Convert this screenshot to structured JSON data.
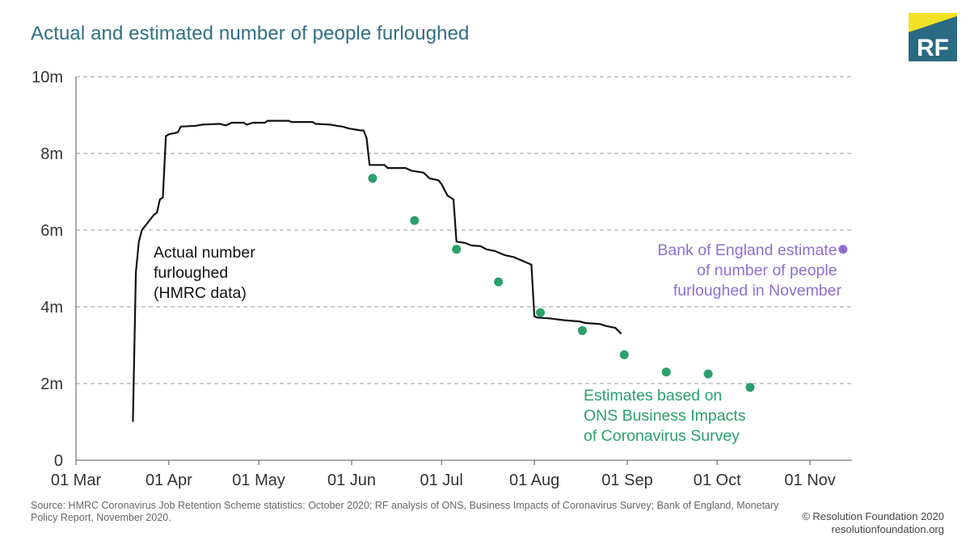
{
  "title": "Actual and estimated number of people furloughed",
  "logo": {
    "text": "RF",
    "colors": {
      "top": "#f0e126",
      "body": "#2a6a82",
      "text": "#ffffff"
    }
  },
  "source": "Source: HMRC Coronavirus Job Retention Scheme statistics: October 2020; RF analysis of ONS, Business Impacts of Coronavirus Survey; Bank of England, Monetary Policy Report, November 2020.",
  "copyright": {
    "line1": "© Resolution Foundation 2020",
    "line2": "resolutionfoundation.org"
  },
  "chart_data": {
    "type": "line",
    "title": "Actual and estimated number of people furloughed",
    "xlabel": "",
    "ylabel": "",
    "x_ticks": [
      "01 Mar",
      "01 Apr",
      "01 May",
      "01 Jun",
      "01 Jul",
      "01 Aug",
      "01 Sep",
      "01 Oct",
      "01 Nov"
    ],
    "x_range": [
      "2020-03-01",
      "2020-11-15"
    ],
    "y_ticks": [
      "0",
      "2m",
      "4m",
      "6m",
      "8m",
      "10m"
    ],
    "ylim": [
      0,
      10
    ],
    "grid": "horizontal dashed",
    "legend": "none (direct annotations)",
    "series": [
      {
        "name": "Actual number furloughed (HMRC data)",
        "style": "line",
        "color": "#111111",
        "points": [
          [
            "2020-03-20",
            1.0
          ],
          [
            "2020-03-21",
            4.9
          ],
          [
            "2020-03-22",
            5.7
          ],
          [
            "2020-03-23",
            6.0
          ],
          [
            "2020-03-25",
            6.2
          ],
          [
            "2020-03-27",
            6.4
          ],
          [
            "2020-03-28",
            6.45
          ],
          [
            "2020-03-29",
            6.8
          ],
          [
            "2020-03-30",
            6.85
          ],
          [
            "2020-03-31",
            8.45
          ],
          [
            "2020-04-01",
            8.5
          ],
          [
            "2020-04-04",
            8.55
          ],
          [
            "2020-04-05",
            8.7
          ],
          [
            "2020-04-10",
            8.72
          ],
          [
            "2020-04-12",
            8.75
          ],
          [
            "2020-04-18",
            8.77
          ],
          [
            "2020-04-20",
            8.73
          ],
          [
            "2020-04-22",
            8.8
          ],
          [
            "2020-04-26",
            8.8
          ],
          [
            "2020-04-27",
            8.75
          ],
          [
            "2020-04-29",
            8.8
          ],
          [
            "2020-05-03",
            8.8
          ],
          [
            "2020-05-04",
            8.85
          ],
          [
            "2020-05-11",
            8.85
          ],
          [
            "2020-05-12",
            8.82
          ],
          [
            "2020-05-19",
            8.82
          ],
          [
            "2020-05-20",
            8.77
          ],
          [
            "2020-05-25",
            8.75
          ],
          [
            "2020-05-27",
            8.72
          ],
          [
            "2020-05-29",
            8.7
          ],
          [
            "2020-05-31",
            8.65
          ],
          [
            "2020-06-04",
            8.6
          ],
          [
            "2020-06-05",
            8.6
          ],
          [
            "2020-06-06",
            8.4
          ],
          [
            "2020-06-07",
            7.7
          ],
          [
            "2020-06-12",
            7.7
          ],
          [
            "2020-06-13",
            7.62
          ],
          [
            "2020-06-19",
            7.62
          ],
          [
            "2020-06-21",
            7.55
          ],
          [
            "2020-06-25",
            7.5
          ],
          [
            "2020-06-27",
            7.35
          ],
          [
            "2020-06-30",
            7.3
          ],
          [
            "2020-07-01",
            7.2
          ],
          [
            "2020-07-03",
            6.9
          ],
          [
            "2020-07-05",
            6.8
          ],
          [
            "2020-07-06",
            5.7
          ],
          [
            "2020-07-09",
            5.66
          ],
          [
            "2020-07-11",
            5.6
          ],
          [
            "2020-07-14",
            5.58
          ],
          [
            "2020-07-16",
            5.5
          ],
          [
            "2020-07-19",
            5.45
          ],
          [
            "2020-07-22",
            5.35
          ],
          [
            "2020-07-25",
            5.3
          ],
          [
            "2020-07-28",
            5.2
          ],
          [
            "2020-07-31",
            5.1
          ],
          [
            "2020-08-01",
            3.75
          ],
          [
            "2020-08-02",
            3.72
          ],
          [
            "2020-08-06",
            3.7
          ],
          [
            "2020-08-11",
            3.65
          ],
          [
            "2020-08-16",
            3.62
          ],
          [
            "2020-08-18",
            3.58
          ],
          [
            "2020-08-23",
            3.55
          ],
          [
            "2020-08-25",
            3.5
          ],
          [
            "2020-08-28",
            3.45
          ],
          [
            "2020-08-30",
            3.3
          ]
        ]
      },
      {
        "name": "Estimates based on ONS Business Impacts of Coronavirus Survey",
        "style": "points",
        "color": "#2aa06b",
        "points": [
          [
            "2020-06-08",
            7.35
          ],
          [
            "2020-06-22",
            6.25
          ],
          [
            "2020-07-06",
            5.5
          ],
          [
            "2020-07-20",
            4.65
          ],
          [
            "2020-08-03",
            3.85
          ],
          [
            "2020-08-17",
            3.38
          ],
          [
            "2020-08-31",
            2.75
          ],
          [
            "2020-09-14",
            2.3
          ],
          [
            "2020-09-28",
            2.25
          ],
          [
            "2020-10-12",
            1.9
          ]
        ]
      },
      {
        "name": "Bank of England estimate of number of people furloughed in November",
        "style": "points",
        "color": "#8e6fd1",
        "points": [
          [
            "2020-11-12",
            5.5
          ]
        ]
      }
    ],
    "annotations": {
      "actual": [
        "Actual number",
        "furloughed",
        "(HMRC data)"
      ],
      "ons": [
        "Estimates based on",
        "ONS Business Impacts",
        "of Coronavirus Survey"
      ],
      "boe": [
        "Bank of England estimate",
        "of number of people",
        "furloughed in November"
      ]
    }
  }
}
